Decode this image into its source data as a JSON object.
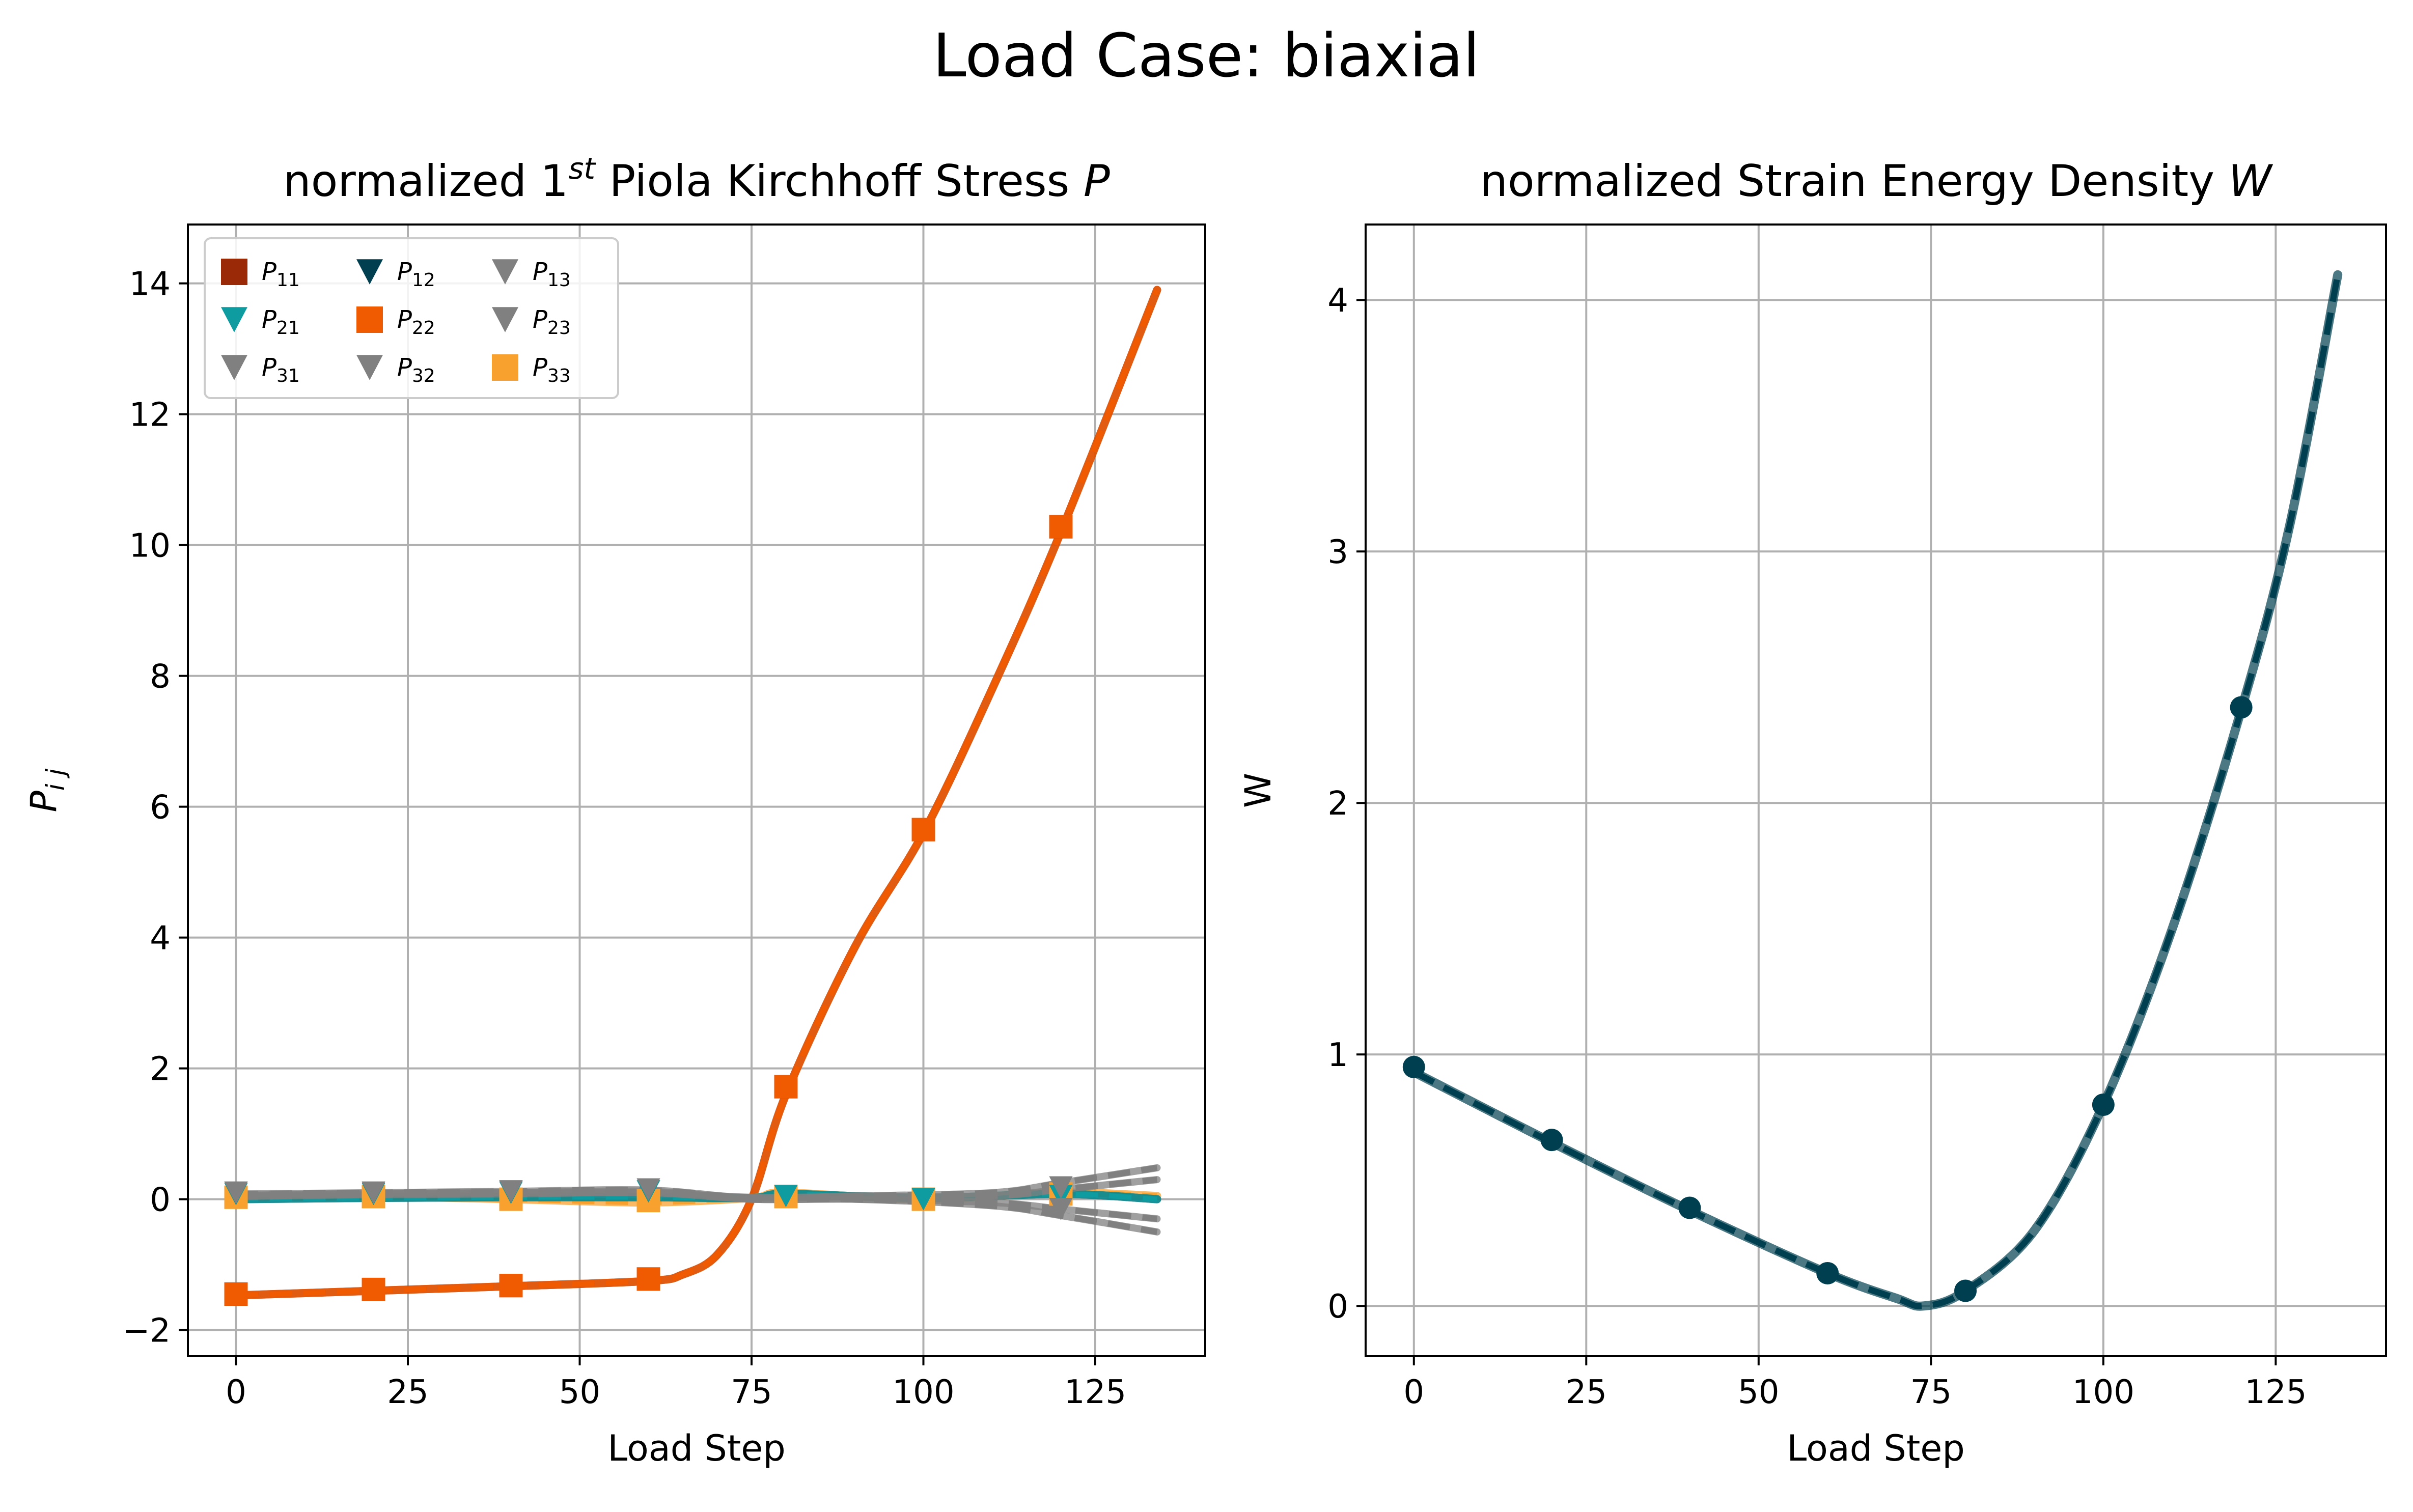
{
  "suptitle": "Load Case: biaxial",
  "chart_data": [
    {
      "type": "line",
      "title": "normalized 1st Piola Kirchhoff Stress P",
      "title_parts": {
        "pre": "normalized 1",
        "sup": "st",
        "mid": " Piola Kirchhoff Stress ",
        "italic": "P"
      },
      "xlabel": "Load Step",
      "ylabel": "P_ij",
      "xlim": [
        -7,
        141
      ],
      "ylim": [
        -2.4,
        14.9
      ],
      "xticks": [
        "0",
        "25",
        "50",
        "75",
        "100",
        "125"
      ],
      "xtick_values": [
        0,
        25,
        50,
        75,
        100,
        125
      ],
      "yticks": [
        "−2",
        "0",
        "2",
        "4",
        "6",
        "8",
        "10",
        "12",
        "14"
      ],
      "ytick_values": [
        -2,
        0,
        2,
        4,
        6,
        8,
        10,
        12,
        14
      ],
      "grid": true,
      "legend_position": "upper-left",
      "legend": [
        {
          "base": "P",
          "sub": "11",
          "marker": "square",
          "color": "#9a2a07"
        },
        {
          "base": "P",
          "sub": "12",
          "marker": "triangle-down",
          "color": "#003f4f"
        },
        {
          "base": "P",
          "sub": "13",
          "marker": "triangle-down",
          "color": "#808080"
        },
        {
          "base": "P",
          "sub": "21",
          "marker": "triangle-down",
          "color": "#0f9ca0"
        },
        {
          "base": "P",
          "sub": "22",
          "marker": "square",
          "color": "#f05a00"
        },
        {
          "base": "P",
          "sub": "23",
          "marker": "triangle-down",
          "color": "#808080"
        },
        {
          "base": "P",
          "sub": "31",
          "marker": "triangle-down",
          "color": "#808080"
        },
        {
          "base": "P",
          "sub": "32",
          "marker": "triangle-down",
          "color": "#808080"
        },
        {
          "base": "P",
          "sub": "33",
          "marker": "square",
          "color": "#f8a12e"
        }
      ],
      "series": [
        {
          "name": "P11",
          "color": "#9a2a07",
          "x": [
            0,
            20,
            40,
            60,
            65,
            70,
            75,
            80,
            90,
            100,
            110,
            120,
            134
          ],
          "y": [
            -1.47,
            -1.4,
            -1.33,
            -1.25,
            -1.15,
            -0.85,
            0.0,
            1.6,
            3.85,
            5.6,
            7.8,
            10.2,
            13.9
          ],
          "marker_x": [
            0,
            20,
            40,
            60,
            80,
            100,
            120
          ],
          "marker_y": [
            -1.45,
            -1.38,
            -1.32,
            -1.22,
            1.72,
            5.65,
            10.28
          ]
        },
        {
          "name": "P22",
          "color": "#f05a00",
          "x": [
            0,
            20,
            40,
            60,
            65,
            70,
            75,
            80,
            90,
            100,
            110,
            120,
            134
          ],
          "y": [
            -1.47,
            -1.4,
            -1.33,
            -1.25,
            -1.15,
            -0.85,
            0.0,
            1.6,
            3.85,
            5.6,
            7.8,
            10.2,
            13.9
          ],
          "marker_x": [
            0,
            20,
            40,
            60,
            80,
            100,
            120
          ],
          "marker_y": [
            -1.45,
            -1.38,
            -1.32,
            -1.22,
            1.72,
            5.65,
            10.28
          ]
        },
        {
          "name": "P33",
          "color": "#f8a12e",
          "x": [
            0,
            20,
            40,
            60,
            75,
            80,
            100,
            120,
            134
          ],
          "y": [
            0.02,
            0.04,
            0.0,
            -0.05,
            0.02,
            0.1,
            0.0,
            0.1,
            0.05
          ],
          "marker_x": [
            0,
            20,
            40,
            60,
            80,
            100,
            120
          ],
          "marker_y": [
            0.03,
            0.04,
            0.0,
            -0.02,
            0.04,
            0.0,
            0.08
          ]
        },
        {
          "name": "P12",
          "color": "#003f4f",
          "x": [
            0,
            20,
            40,
            60,
            75,
            80,
            100,
            120,
            134
          ],
          "y": [
            0.0,
            0.02,
            0.03,
            0.03,
            0.02,
            0.08,
            0.02,
            0.08,
            0.0
          ],
          "marker_x": [
            0,
            20,
            40,
            60,
            80,
            100,
            120
          ],
          "marker_y": [
            0.08,
            0.08,
            0.1,
            0.12,
            0.05,
            0.0,
            0.05
          ]
        },
        {
          "name": "P21",
          "color": "#0f9ca0",
          "x": [
            0,
            20,
            40,
            60,
            75,
            80,
            100,
            120,
            134
          ],
          "y": [
            0.0,
            0.02,
            0.03,
            0.03,
            0.02,
            0.08,
            0.02,
            0.08,
            0.0
          ],
          "marker_x": [
            0,
            20,
            40,
            60,
            80,
            100,
            120
          ],
          "marker_y": [
            0.08,
            0.08,
            0.1,
            0.12,
            0.05,
            0.0,
            0.05
          ]
        },
        {
          "name": "P13",
          "color": "#808080",
          "x": [
            0,
            20,
            40,
            60,
            75,
            90,
            110,
            120,
            134
          ],
          "y": [
            0.08,
            0.1,
            0.12,
            0.14,
            0.02,
            0.05,
            0.1,
            0.25,
            0.48
          ],
          "marker_x": [
            0,
            20,
            40,
            60,
            120
          ],
          "marker_y": [
            0.1,
            0.1,
            0.12,
            0.15,
            0.18
          ]
        },
        {
          "name": "P23",
          "color": "#808080",
          "x": [
            0,
            20,
            40,
            60,
            75,
            90,
            110,
            120,
            134
          ],
          "y": [
            0.05,
            0.08,
            0.1,
            0.12,
            0.0,
            0.0,
            -0.1,
            -0.25,
            -0.5
          ],
          "marker_x": [
            0,
            20,
            40,
            60,
            120
          ],
          "marker_y": [
            0.1,
            0.1,
            0.12,
            0.15,
            -0.15
          ]
        },
        {
          "name": "P31",
          "color": "#808080",
          "x": [
            0,
            20,
            40,
            60,
            75,
            90,
            110,
            120,
            134
          ],
          "y": [
            0.06,
            0.09,
            0.1,
            0.1,
            0.03,
            0.04,
            0.05,
            0.15,
            0.3
          ],
          "marker_x": [
            0,
            20,
            40,
            60,
            120
          ],
          "marker_y": [
            0.1,
            0.1,
            0.12,
            0.15,
            0.18
          ]
        },
        {
          "name": "P32",
          "color": "#808080",
          "x": [
            0,
            20,
            40,
            60,
            75,
            90,
            110,
            120,
            134
          ],
          "y": [
            0.04,
            0.07,
            0.08,
            0.1,
            0.0,
            0.0,
            -0.05,
            -0.15,
            -0.3
          ],
          "marker_x": [
            0,
            20,
            40,
            60,
            120
          ],
          "marker_y": [
            0.1,
            0.1,
            0.12,
            0.15,
            -0.15
          ]
        }
      ]
    },
    {
      "type": "line",
      "title": "normalized Strain Energy Density W",
      "title_parts": {
        "pre": "normalized Strain Energy Density ",
        "italic": "W"
      },
      "xlabel": "Load Step",
      "ylabel": "W",
      "xlim": [
        -7,
        141
      ],
      "ylim": [
        -0.2,
        4.3
      ],
      "xticks": [
        "0",
        "25",
        "50",
        "75",
        "100",
        "125"
      ],
      "xtick_values": [
        0,
        25,
        50,
        75,
        100,
        125
      ],
      "yticks": [
        "0",
        "1",
        "2",
        "3",
        "4"
      ],
      "ytick_values": [
        0,
        1,
        2,
        3,
        4
      ],
      "grid": true,
      "series": [
        {
          "name": "W",
          "color": "#003f4f",
          "x": [
            0,
            20,
            40,
            60,
            70,
            74,
            80,
            90,
            100,
            110,
            120,
            127,
            134
          ],
          "y": [
            0.93,
            0.65,
            0.38,
            0.13,
            0.03,
            0.0,
            0.06,
            0.3,
            0.8,
            1.5,
            2.37,
            3.1,
            4.1
          ],
          "marker_x": [
            0,
            20,
            40,
            60,
            80,
            100,
            120
          ],
          "marker_y": [
            0.95,
            0.66,
            0.39,
            0.13,
            0.06,
            0.8,
            2.38
          ]
        }
      ]
    }
  ]
}
